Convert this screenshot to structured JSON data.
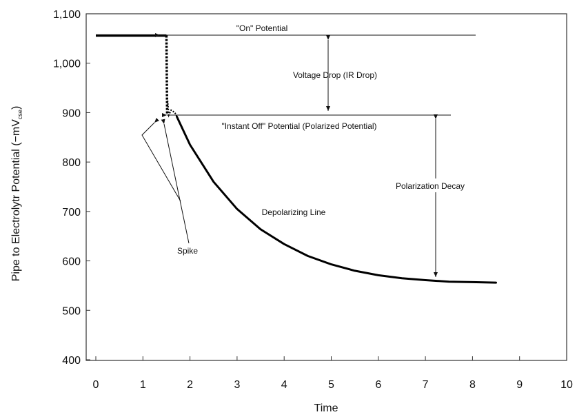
{
  "chart_data": {
    "type": "line",
    "title": "",
    "xlabel": "Time",
    "ylabel_main": "Pipe to Electrolytr  Potential (−mV",
    "ylabel_sub": "cse",
    "ylabel_end": ")",
    "xlim": [
      0,
      10
    ],
    "ylim": [
      400,
      1100
    ],
    "x_ticks": [
      0,
      1,
      2,
      3,
      4,
      5,
      6,
      7,
      8,
      9,
      10
    ],
    "y_ticks": [
      400,
      500,
      600,
      700,
      800,
      900,
      1000,
      1100
    ],
    "y_tick_labels": [
      "400",
      "500",
      "600",
      "700",
      "800",
      "900",
      "1,000",
      "1,100"
    ],
    "grid": false,
    "series": [
      {
        "points": [
          [
            0.0,
            1056
          ],
          [
            1.5,
            1056
          ],
          [
            1.52,
            930
          ],
          [
            1.55,
            895
          ],
          [
            1.6,
            905
          ],
          [
            1.68,
            900
          ],
          [
            1.72,
            892
          ],
          [
            2.0,
            835
          ],
          [
            2.5,
            760
          ],
          [
            3.0,
            705
          ],
          [
            3.5,
            664
          ],
          [
            4.0,
            634
          ],
          [
            4.5,
            610
          ],
          [
            5.0,
            593
          ],
          [
            5.5,
            580
          ],
          [
            6.0,
            571
          ],
          [
            6.5,
            565
          ],
          [
            7.0,
            561
          ],
          [
            7.5,
            558
          ],
          [
            8.0,
            557
          ],
          [
            8.5,
            556
          ]
        ]
      }
    ],
    "annotations": {
      "on_potential": "\"On\" Potential",
      "voltage_drop": "Voltage Drop (IR Drop)",
      "instant_off": "\"Instant Off\" Potential (Polarized Potential)",
      "polarization_decay": "Polarization Decay",
      "depolarizing_line": "Depolarizing Line",
      "spike": "Spike"
    }
  }
}
